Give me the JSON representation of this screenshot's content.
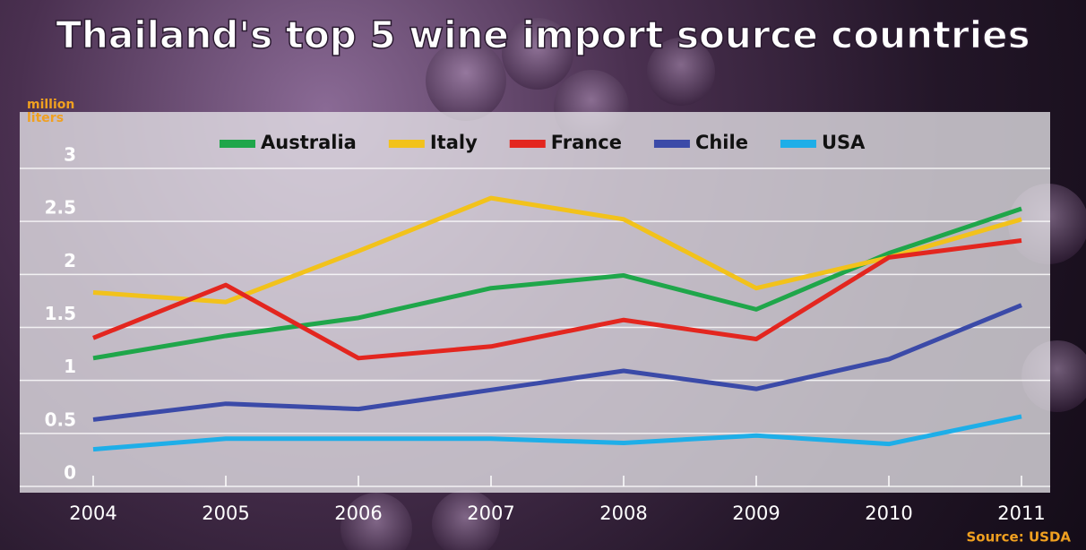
{
  "chart_data": {
    "type": "line",
    "title": "Thailand's top 5 wine import source countries",
    "y_label": "million liters",
    "source": "Source: USDA",
    "x": [
      2004,
      2005,
      2006,
      2007,
      2008,
      2009,
      2010,
      2011
    ],
    "xlim": [
      2004,
      2011
    ],
    "xticks": [
      2004,
      2005,
      2006,
      2007,
      2008,
      2009,
      2010,
      2011
    ],
    "ylim": [
      0,
      3
    ],
    "yticks": [
      0,
      0.5,
      1,
      1.5,
      2,
      2.5,
      3
    ],
    "grid": true,
    "legend": "top",
    "series": [
      {
        "name": "Australia",
        "color": "#1fa64a",
        "values": [
          1.21,
          1.42,
          1.59,
          1.87,
          1.99,
          1.67,
          2.2,
          2.62
        ]
      },
      {
        "name": "Italy",
        "color": "#f2c21b",
        "values": [
          1.83,
          1.74,
          2.22,
          2.72,
          2.52,
          1.87,
          2.16,
          2.52
        ]
      },
      {
        "name": "France",
        "color": "#e3261f",
        "values": [
          1.4,
          1.9,
          1.21,
          1.32,
          1.57,
          1.39,
          2.16,
          2.32
        ]
      },
      {
        "name": "Chile",
        "color": "#3b4aa8",
        "values": [
          0.63,
          0.78,
          0.73,
          0.91,
          1.09,
          0.92,
          1.2,
          1.71
        ]
      },
      {
        "name": "USA",
        "color": "#1eaee8",
        "values": [
          0.35,
          0.45,
          0.45,
          0.45,
          0.41,
          0.48,
          0.4,
          0.66
        ]
      }
    ]
  }
}
